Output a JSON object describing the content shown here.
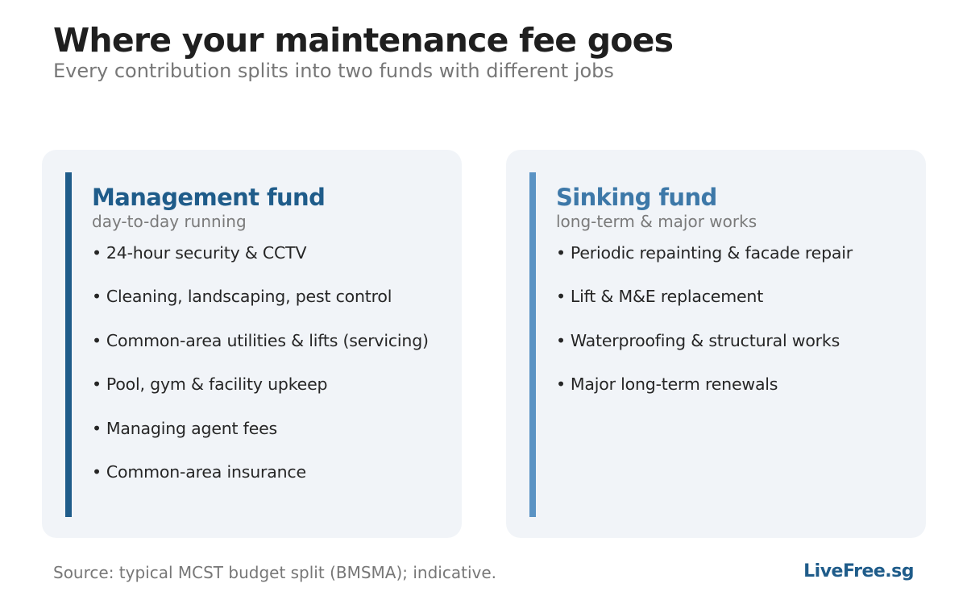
{
  "header": {
    "title": "Where your maintenance fee goes",
    "subtitle": "Every contribution splits into two funds with different jobs"
  },
  "funds": [
    {
      "title": "Management fund",
      "subtitle": "day-to-day running",
      "accent_color": "#1f5c8a",
      "items": [
        "24-hour security & CCTV",
        "Cleaning, landscaping, pest control",
        "Common-area utilities & lifts (servicing)",
        "Pool, gym & facility upkeep",
        "Managing agent fees",
        "Common-area insurance"
      ]
    },
    {
      "title": "Sinking fund",
      "subtitle": "long-term & major works",
      "accent_color": "#5b93c4",
      "title_color": "#3d78a8",
      "items": [
        "Periodic repainting & facade repair",
        "Lift & M&E replacement",
        "Waterproofing & structural works",
        "Major long-term renewals"
      ]
    }
  ],
  "footer": {
    "source": "Source: typical MCST budget split (BMSMA); indicative.",
    "brand": "LiveFree.sg",
    "brand_color": "#1f5c8a"
  }
}
